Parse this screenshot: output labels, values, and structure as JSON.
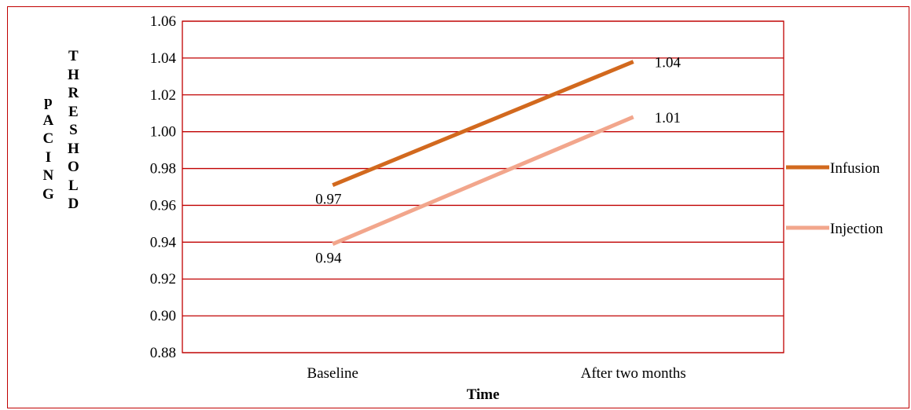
{
  "chart_data": {
    "type": "line",
    "categories": [
      "Baseline",
      "After two months"
    ],
    "series": [
      {
        "name": "Infusion",
        "values": [
          0.97,
          1.04
        ],
        "color": "#d2691e",
        "data_labels": [
          "0.97",
          "1.04"
        ]
      },
      {
        "name": "Injection",
        "values": [
          0.94,
          1.01
        ],
        "color": "#f2a68c",
        "data_labels": [
          "0.94",
          "1.01"
        ]
      }
    ],
    "plotted_values": {
      "Infusion": [
        0.971,
        1.038
      ],
      "Injection": [
        0.939,
        1.008
      ]
    },
    "ylim": [
      0.88,
      1.06
    ],
    "yticks": [
      "0.88",
      "0.90",
      "0.92",
      "0.94",
      "0.96",
      "0.98",
      "1.00",
      "1.02",
      "1.04",
      "1.06"
    ],
    "xlabel": "Time",
    "ylabel_left": "pACING",
    "ylabel_right": "THRESHOLD",
    "grid": true,
    "grid_color": "#c00000",
    "legend_position": "right"
  }
}
